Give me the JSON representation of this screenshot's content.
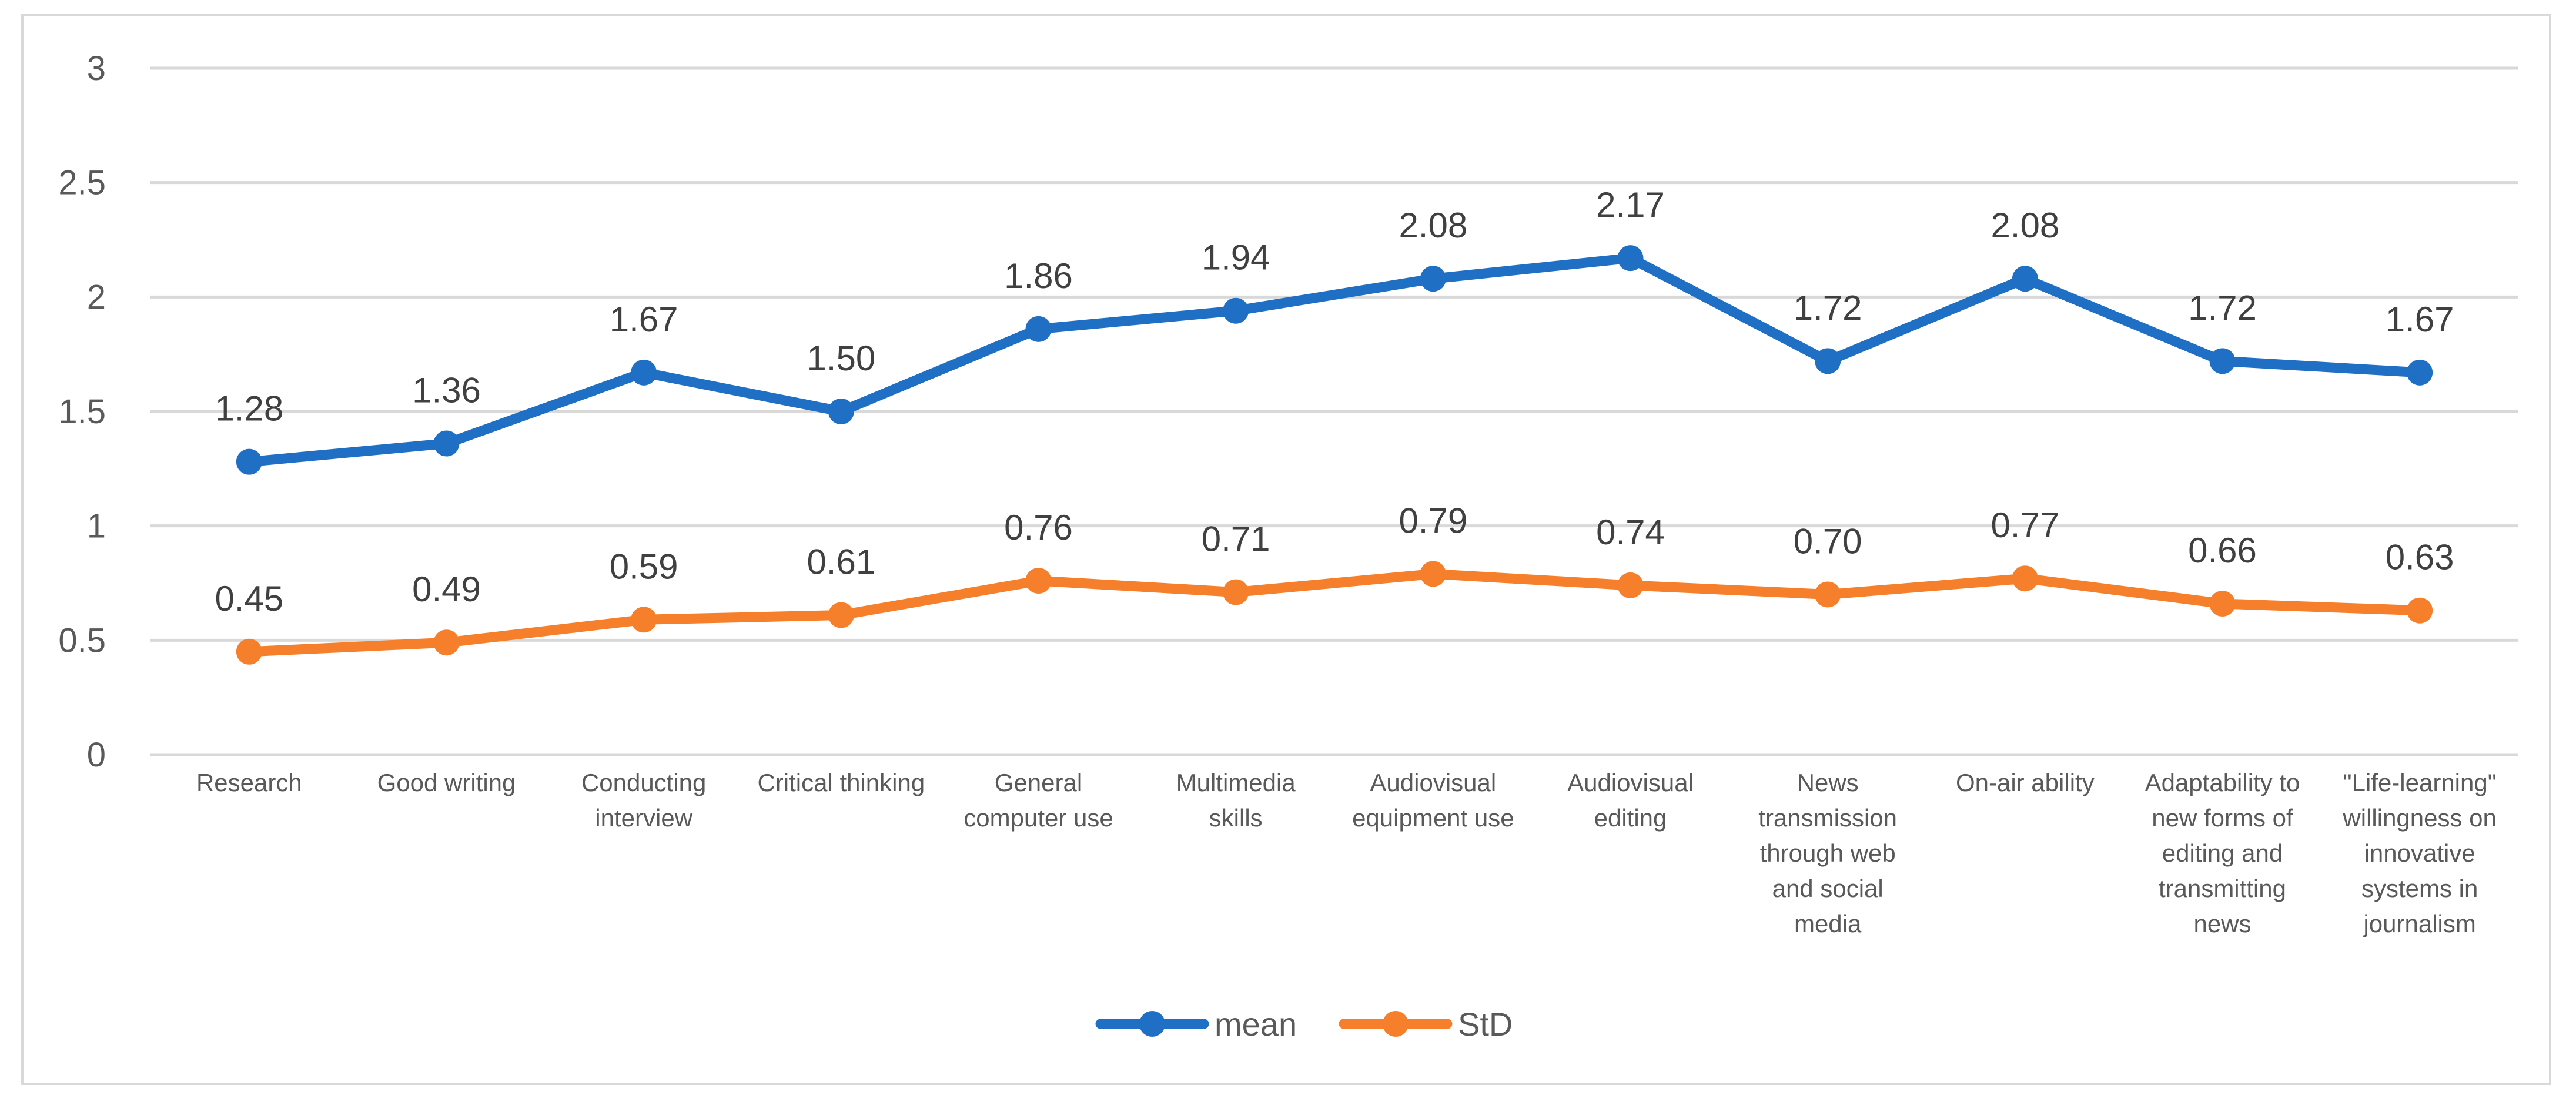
{
  "chart_data": {
    "type": "line",
    "title": "",
    "xlabel": "",
    "ylabel": "",
    "ylim": [
      0,
      3
    ],
    "yticks": [
      "0",
      "0.5",
      "1",
      "1.5",
      "2",
      "2.5",
      "3"
    ],
    "ytick_values": [
      0,
      0.5,
      1,
      1.5,
      2,
      2.5,
      3
    ],
    "grid": true,
    "legend_position": "bottom",
    "categories": [
      "Research",
      "Good writing",
      "Conducting interview",
      "Critical thinking",
      "General computer use",
      "Multimedia skills",
      "Audiovisual equipment use",
      "Audiovisual editing",
      "News transmission through web and social media",
      "On-air ability",
      "Adaptability to new forms of editing and transmitting news",
      "\"Life-learning\" willingness on innovative systems in journalism"
    ],
    "category_lines": [
      [
        "Research"
      ],
      [
        "Good writing"
      ],
      [
        "Conducting",
        "interview"
      ],
      [
        "Critical thinking"
      ],
      [
        "General",
        "computer use"
      ],
      [
        "Multimedia",
        "skills"
      ],
      [
        "Audiovisual",
        "equipment use"
      ],
      [
        "Audiovisual",
        "editing"
      ],
      [
        "News",
        "transmission",
        "through web",
        "and social",
        "media"
      ],
      [
        "On-air ability"
      ],
      [
        "Adaptability to",
        "new forms of",
        "editing and",
        "transmitting",
        "news"
      ],
      [
        "\"Life-learning\"",
        "willingness on",
        "innovative",
        "systems in",
        "journalism"
      ]
    ],
    "series": [
      {
        "name": "mean",
        "color": "#1f6fc5",
        "values": [
          1.28,
          1.36,
          1.67,
          1.5,
          1.86,
          1.94,
          2.08,
          2.17,
          1.72,
          2.08,
          1.72,
          1.67
        ],
        "labels": [
          "1.28",
          "1.36",
          "1.67",
          "1.50",
          "1.86",
          "1.94",
          "2.08",
          "2.17",
          "1.72",
          "2.08",
          "1.72",
          "1.67"
        ]
      },
      {
        "name": "StD",
        "color": "#f57f2a",
        "values": [
          0.45,
          0.49,
          0.59,
          0.61,
          0.76,
          0.71,
          0.79,
          0.74,
          0.7,
          0.77,
          0.66,
          0.63
        ],
        "labels": [
          "0.45",
          "0.49",
          "0.59",
          "0.61",
          "0.76",
          "0.71",
          "0.79",
          "0.74",
          "0.70",
          "0.77",
          "0.66",
          "0.63"
        ]
      }
    ]
  }
}
